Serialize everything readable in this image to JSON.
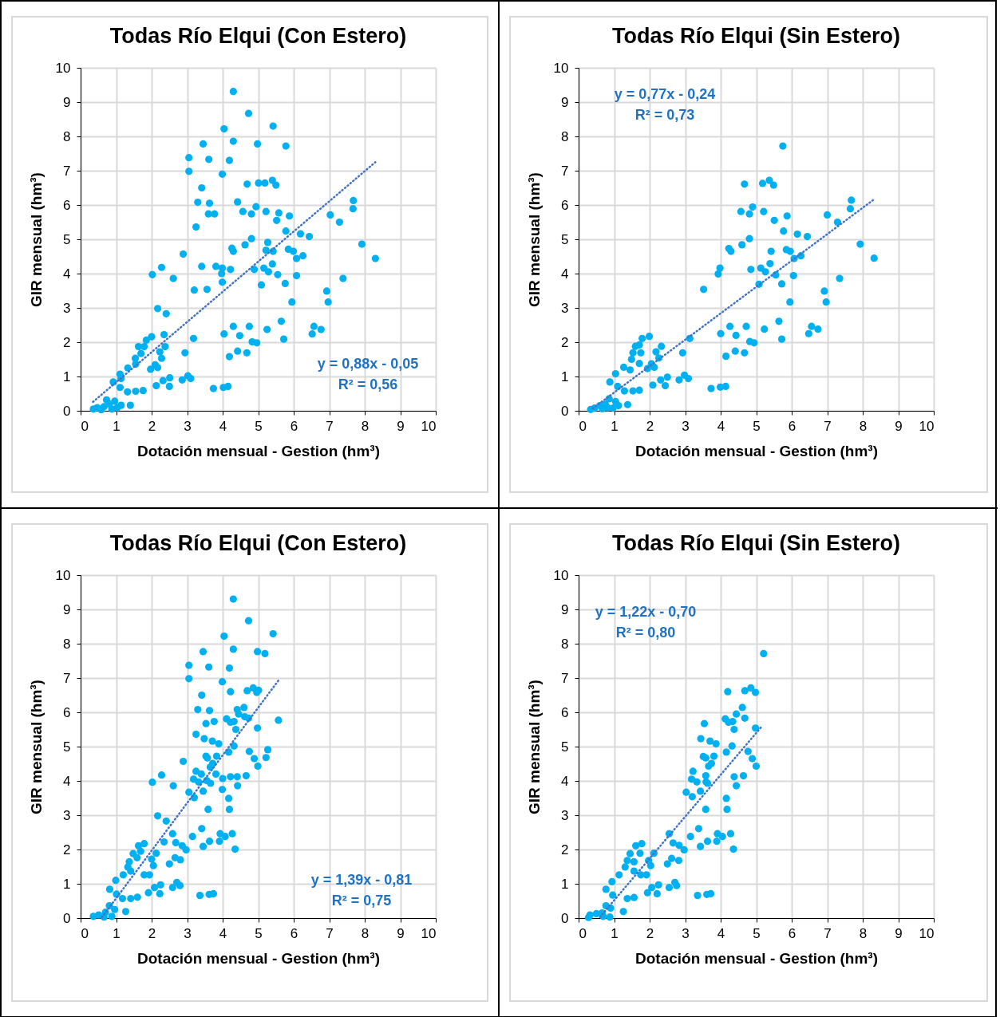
{
  "chart_data": [
    {
      "type": "scatter",
      "title": "Todas Río Elqui (Con Estero)",
      "xlabel": "Dotación mensual - Gestion (hm³)",
      "ylabel": "GIR mensual (hm³)",
      "xlim": [
        0,
        10
      ],
      "ylim": [
        0,
        10
      ],
      "xticks": [
        0,
        1,
        2,
        3,
        4,
        5,
        6,
        7,
        8,
        9,
        10
      ],
      "yticks": [
        0,
        1,
        2,
        3,
        4,
        5,
        6,
        7,
        8,
        9,
        10
      ],
      "grid": true,
      "marker": "circle",
      "annotations": [
        "y = 0,88x - 0,05",
        "R² = 0,56"
      ],
      "series": [
        {
          "type": "scatter",
          "color": "#00b0f0",
          "x": [
            4.3,
            4.73,
            4.04,
            5.42,
            3.45,
            4.3,
            4.98,
            5.78,
            3.05,
            3.61,
            4.19,
            3.05,
            3.99,
            3.41,
            4.69,
            5.01,
            5.19,
            5.4,
            5.5,
            3.3,
            3.63,
            4.42,
            3.6,
            3.77,
            4.57,
            4.81,
            4.94,
            5.22,
            5.58,
            5.52,
            5.88,
            7.03,
            7.29,
            7.68,
            7.67,
            3.25,
            5.78,
            6.19,
            6.44,
            4.81,
            4.63,
            5.27,
            4.26,
            4.3,
            5.22,
            5.42,
            5.85,
            5.99,
            6.08,
            6.26,
            7.92,
            8.3,
            2.89,
            2.02,
            2.28,
            2.61,
            3.41,
            3.81,
            3.99,
            3.97,
            4.22,
            4.89,
            5.16,
            5.4,
            5.29,
            5.55,
            6.08,
            3.99,
            5.09,
            5.76,
            3.2,
            3.56,
            7.39,
            6.93,
            6.97,
            5.95,
            2.17,
            2.41,
            5.65,
            4.3,
            4.75,
            5.25,
            4.04,
            4.48,
            6.57,
            6.77,
            6.52,
            4.83,
            4.96,
            5.72,
            3.18,
            4.19,
            4.42,
            4.68,
            2.94,
            2.0,
            2.35,
            2.38,
            2.23,
            2.28,
            2.1,
            2.17,
            1.97,
            1.85,
            1.79,
            1.63,
            1.7,
            1.54,
            1.55,
            1.33,
            1.11,
            0.92,
            1.14,
            1.11,
            1.32,
            1.55,
            1.76,
            2.13,
            2.32,
            2.51,
            2.5,
            2.86,
            3.02,
            3.1,
            3.74,
            4.02,
            4.15,
            1.4,
            0.96,
            0.81,
            0.66,
            0.47,
            0.36,
            1.03,
            0.88,
            0.58,
            1.14,
            0.73
          ],
          "values": [
            9.31,
            8.67,
            8.22,
            8.3,
            7.78,
            7.86,
            7.78,
            7.72,
            7.38,
            7.33,
            7.3,
            6.98,
            6.9,
            6.5,
            6.61,
            6.64,
            6.64,
            6.72,
            6.58,
            6.08,
            6.05,
            6.09,
            5.74,
            5.74,
            5.81,
            5.74,
            5.95,
            5.81,
            5.77,
            5.55,
            5.68,
            5.71,
            5.5,
            6.13,
            5.89,
            5.36,
            5.24,
            5.16,
            5.08,
            5.02,
            4.84,
            4.91,
            4.74,
            4.65,
            4.68,
            4.65,
            4.71,
            4.65,
            4.44,
            4.52,
            4.86,
            4.44,
            4.57,
            3.97,
            4.18,
            3.86,
            4.21,
            4.21,
            4.16,
            4.0,
            4.12,
            4.12,
            4.16,
            4.28,
            4.05,
            3.97,
            3.94,
            3.75,
            3.67,
            3.71,
            3.52,
            3.54,
            3.86,
            3.49,
            3.17,
            3.17,
            2.98,
            2.83,
            2.61,
            2.46,
            2.46,
            2.37,
            2.24,
            2.19,
            2.46,
            2.37,
            2.24,
            2.01,
            1.98,
            2.09,
            2.11,
            1.58,
            1.74,
            1.69,
            1.69,
            2.16,
            2.22,
            1.87,
            1.72,
            1.53,
            1.34,
            1.26,
            1.21,
            2.06,
            1.87,
            1.87,
            1.67,
            1.53,
            1.36,
            1.25,
            1.07,
            0.84,
            0.94,
            0.68,
            0.55,
            0.57,
            0.59,
            0.73,
            0.88,
            0.96,
            0.71,
            0.9,
            1.02,
            0.94,
            0.65,
            0.68,
            0.71,
            0.16,
            0.28,
            0.2,
            0.12,
            0.09,
            0.05,
            0.09,
            0.05,
            0.03,
            0.16,
            0.32
          ]
        },
        {
          "type": "line",
          "color": "#4472c4",
          "line_style": "dotted",
          "marker": "none",
          "x": [
            0.35,
            8.3
          ],
          "values": [
            0.26,
            7.25
          ]
        }
      ]
    },
    {
      "type": "scatter",
      "title": "Todas Río Elqui (Sin Estero)",
      "xlabel": "Dotación mensual - Gestion (hm³)",
      "ylabel": "GIR mensual (hm³)",
      "xlim": [
        0,
        10
      ],
      "ylim": [
        0,
        10
      ],
      "xticks": [
        0,
        1,
        2,
        3,
        4,
        5,
        6,
        7,
        8,
        9,
        10
      ],
      "yticks": [
        0,
        1,
        2,
        3,
        4,
        5,
        6,
        7,
        8,
        9,
        10
      ],
      "grid": true,
      "marker": "circle",
      "annotations": [
        "y = 0,77x - 0,24",
        "R² = 0,73"
      ],
      "series": [
        {
          "type": "scatter",
          "color": "#00b0f0",
          "x": [
            5.75,
            4.67,
            5.18,
            5.37,
            5.49,
            4.57,
            4.81,
            4.9,
            5.21,
            5.87,
            5.51,
            5.77,
            6.16,
            6.44,
            7.0,
            7.29,
            7.68,
            7.65,
            4.81,
            4.6,
            4.23,
            4.29,
            5.42,
            5.85,
            5.96,
            6.07,
            6.26,
            7.93,
            8.32,
            3.98,
            3.93,
            4.85,
            5.13,
            5.26,
            5.39,
            5.55,
            6.05,
            5.08,
            5.72,
            3.52,
            7.35,
            6.92,
            6.97,
            5.95,
            3.13,
            4.26,
            4.72,
            5.23,
            5.64,
            4.0,
            4.43,
            6.56,
            6.74,
            6.48,
            4.82,
            4.94,
            5.72,
            4.15,
            4.41,
            4.67,
            2.93,
            1.99,
            2.33,
            2.18,
            2.26,
            2.05,
            2.13,
            1.94,
            1.79,
            1.71,
            1.6,
            1.75,
            1.53,
            1.49,
            1.71,
            1.27,
            1.45,
            1.04,
            0.88,
            1.1,
            1.53,
            1.71,
            1.29,
            2.09,
            2.31,
            2.5,
            2.44,
            2.83,
            2.98,
            3.09,
            3.73,
            3.99,
            4.14,
            1.38,
            1.04,
            1.12,
            0.86,
            0.75,
            0.6,
            0.45,
            0.34,
            0.97,
            0.67,
            0.82
          ],
          "values": [
            7.72,
            6.61,
            6.63,
            6.72,
            6.58,
            5.81,
            5.74,
            5.94,
            5.81,
            5.68,
            5.55,
            5.24,
            5.15,
            5.08,
            5.71,
            5.5,
            6.14,
            5.89,
            5.02,
            4.84,
            4.73,
            4.65,
            4.65,
            4.7,
            4.65,
            4.44,
            4.52,
            4.86,
            4.45,
            4.16,
            3.99,
            4.12,
            4.16,
            4.05,
            4.29,
            3.96,
            3.94,
            3.69,
            3.7,
            3.54,
            3.86,
            3.49,
            3.17,
            3.17,
            2.11,
            2.46,
            2.46,
            2.38,
            2.61,
            2.25,
            2.2,
            2.46,
            2.38,
            2.25,
            2.02,
            1.98,
            2.09,
            1.59,
            1.74,
            1.69,
            1.69,
            2.17,
            1.88,
            1.72,
            1.54,
            1.37,
            1.27,
            1.23,
            2.11,
            1.92,
            1.88,
            1.69,
            1.69,
            1.5,
            1.38,
            1.27,
            1.19,
            1.08,
            0.84,
            0.71,
            0.58,
            0.6,
            0.58,
            0.75,
            0.9,
            0.98,
            0.73,
            0.9,
            1.04,
            0.94,
            0.65,
            0.69,
            0.71,
            0.18,
            0.27,
            0.15,
            0.35,
            0.19,
            0.15,
            0.08,
            0.04,
            0.08,
            0.06,
            0.09
          ]
        },
        {
          "type": "line",
          "color": "#4472c4",
          "line_style": "dotted",
          "marker": "none",
          "x": [
            0.4,
            8.3
          ],
          "values": [
            0.07,
            6.15
          ]
        }
      ]
    },
    {
      "type": "scatter",
      "title": "Todas Río Elqui (Con Estero)",
      "xlabel": "Dotación mensual - Gestion (hm³)",
      "ylabel": "GIR mensual (hm³)",
      "xlim": [
        0,
        10
      ],
      "ylim": [
        0,
        10
      ],
      "xticks": [
        0,
        1,
        2,
        3,
        4,
        5,
        6,
        7,
        8,
        9,
        10
      ],
      "yticks": [
        0,
        1,
        2,
        3,
        4,
        5,
        6,
        7,
        8,
        9,
        10
      ],
      "grid": true,
      "marker": "circle",
      "annotations": [
        "y = 1,39x - 0,81",
        "R² = 0,75"
      ],
      "series": [
        {
          "type": "scatter",
          "color": "#00b0f0",
          "x": [
            4.3,
            4.73,
            4.04,
            5.42,
            3.45,
            4.3,
            4.98,
            5.19,
            3.05,
            3.61,
            4.19,
            3.05,
            3.99,
            3.41,
            4.22,
            4.69,
            4.86,
            4.96,
            5.01,
            3.3,
            3.63,
            4.41,
            4.6,
            4.45,
            4.62,
            4.73,
            4.11,
            4.22,
            4.32,
            3.53,
            3.76,
            5.57,
            4.98,
            4.37,
            3.25,
            3.48,
            3.71,
            3.89,
            4.32,
            4.17,
            4.75,
            4.89,
            4.99,
            5.22,
            5.27,
            2.89,
            3.53,
            3.57,
            3.83,
            3.72,
            3.65,
            3.25,
            3.4,
            3.18,
            3.32,
            3.55,
            3.66,
            3.81,
            4.0,
            4.22,
            4.41,
            4.66,
            4.42,
            2.02,
            2.28,
            2.61,
            3.99,
            3.05,
            3.45,
            3.2,
            4.17,
            3.59,
            4.19,
            2.17,
            2.41,
            3.41,
            2.59,
            3.15,
            3.93,
            4.07,
            4.27,
            2.35,
            2.68,
            2.86,
            2.97,
            3.45,
            3.63,
            3.91,
            4.35,
            1.79,
            1.63,
            1.69,
            1.48,
            1.59,
            1.37,
            1.33,
            1.41,
            1.2,
            0.99,
            0.82,
            1.01,
            1.18,
            1.41,
            1.6,
            1.79,
            1.94,
            2.0,
            2.05,
            2.13,
            2.5,
            2.66,
            2.81,
            1.91,
            2.08,
            2.25,
            2.23,
            2.59,
            2.71,
            2.8,
            3.36,
            3.62,
            3.74,
            1.27,
            0.96,
            0.81,
            0.7,
            0.51,
            0.36,
            0.88,
            0.66
          ],
          "values": [
            9.3,
            8.67,
            8.22,
            8.29,
            7.77,
            7.84,
            7.77,
            7.71,
            7.37,
            7.32,
            7.29,
            6.98,
            6.89,
            6.5,
            6.6,
            6.63,
            6.71,
            6.58,
            6.64,
            6.08,
            6.05,
            6.08,
            6.14,
            5.95,
            5.87,
            5.83,
            5.81,
            5.71,
            5.73,
            5.67,
            5.73,
            5.77,
            5.54,
            5.5,
            5.36,
            5.23,
            5.16,
            5.08,
            5.02,
            4.84,
            4.86,
            4.65,
            4.43,
            4.68,
            4.91,
            4.57,
            4.72,
            4.67,
            4.72,
            4.51,
            4.4,
            4.28,
            4.2,
            4.05,
            3.97,
            4.01,
            3.93,
            4.2,
            4.07,
            4.12,
            4.12,
            4.15,
            3.86,
            3.96,
            4.17,
            3.86,
            3.75,
            3.67,
            3.7,
            3.51,
            3.49,
            3.17,
            3.17,
            2.98,
            2.83,
            2.61,
            2.46,
            2.38,
            2.46,
            2.38,
            2.46,
            2.22,
            2.2,
            2.11,
            1.99,
            2.09,
            2.24,
            2.24,
            2.01,
            2.17,
            2.11,
            1.95,
            1.88,
            1.76,
            1.64,
            1.49,
            1.37,
            1.26,
            1.1,
            0.84,
            0.7,
            0.57,
            0.57,
            0.61,
            1.26,
            1.26,
            1.72,
            1.53,
            1.89,
            1.58,
            1.76,
            1.7,
            0.74,
            0.89,
            0.97,
            0.71,
            0.89,
            1.04,
            0.95,
            0.66,
            0.69,
            0.71,
            0.19,
            0.25,
            0.36,
            0.17,
            0.09,
            0.05,
            0.05,
            0.03
          ]
        },
        {
          "type": "line",
          "color": "#4472c4",
          "line_style": "dotted",
          "marker": "none",
          "x": [
            0.6,
            5.6
          ],
          "values": [
            0.02,
            6.97
          ]
        }
      ]
    },
    {
      "type": "scatter",
      "title": "Todas Río Elqui (Sin Estero)",
      "xlabel": "Dotación mensual - Gestion (hm³)",
      "ylabel": "GIR mensual (hm³)",
      "xlim": [
        0,
        10
      ],
      "ylim": [
        0,
        10
      ],
      "xticks": [
        0,
        1,
        2,
        3,
        4,
        5,
        6,
        7,
        8,
        9,
        10
      ],
      "yticks": [
        0,
        1,
        2,
        3,
        4,
        5,
        6,
        7,
        8,
        9,
        10
      ],
      "grid": true,
      "marker": "circle",
      "annotations": [
        "y = 1,22x - 0,70",
        "R² = 0,80"
      ],
      "series": [
        {
          "type": "scatter",
          "color": "#00b0f0",
          "x": [
            5.21,
            4.2,
            4.68,
            4.85,
            4.98,
            3.54,
            3.44,
            3.7,
            3.87,
            4.13,
            4.22,
            4.34,
            4.44,
            4.61,
            4.68,
            4.38,
            4.98,
            4.16,
            4.32,
            4.77,
            4.89,
            5.0,
            3.51,
            3.58,
            3.81,
            3.74,
            3.66,
            3.22,
            3.18,
            3.33,
            3.58,
            3.59,
            3.63,
            4.38,
            4.64,
            4.44,
            3.03,
            3.2,
            3.43,
            4.16,
            3.58,
            4.18,
            2.55,
            3.38,
            3.15,
            3.91,
            4.05,
            4.28,
            2.66,
            2.83,
            2.97,
            3.43,
            3.63,
            3.89,
            4.36,
            1.78,
            1.61,
            1.73,
            1.45,
            1.37,
            1.56,
            1.31,
            1.56,
            1.14,
            0.94,
            0.77,
            0.96,
            1.37,
            1.56,
            1.75,
            1.91,
            2.03,
            1.97,
            2.12,
            2.5,
            2.62,
            2.82,
            1.94,
            2.06,
            2.25,
            2.21,
            2.55,
            2.71,
            2.76,
            3.35,
            3.61,
            3.72,
            1.26,
            0.9,
            0.77,
            0.66,
            0.5,
            0.32,
            0.28,
            0.88,
            0.69
          ],
          "values": [
            7.71,
            6.6,
            6.63,
            6.71,
            6.58,
            5.67,
            5.23,
            5.16,
            5.08,
            5.81,
            5.71,
            5.73,
            5.95,
            6.14,
            5.83,
            5.5,
            5.54,
            4.84,
            5.02,
            4.86,
            4.65,
            4.43,
            4.71,
            4.67,
            4.72,
            4.51,
            4.43,
            4.28,
            4.05,
            3.97,
            4.15,
            3.97,
            3.93,
            4.12,
            4.15,
            3.86,
            3.67,
            3.54,
            3.7,
            3.49,
            3.17,
            3.17,
            2.46,
            2.61,
            2.38,
            2.46,
            2.38,
            2.46,
            2.19,
            2.12,
            1.99,
            2.09,
            2.24,
            2.24,
            2.01,
            2.17,
            2.11,
            1.89,
            1.88,
            1.68,
            1.64,
            1.49,
            1.37,
            1.26,
            1.06,
            0.84,
            0.67,
            0.57,
            0.6,
            1.26,
            1.26,
            1.53,
            1.68,
            1.89,
            1.58,
            1.74,
            1.68,
            0.74,
            0.89,
            0.97,
            0.71,
            0.89,
            1.04,
            0.95,
            0.66,
            0.69,
            0.71,
            0.19,
            0.29,
            0.36,
            0.15,
            0.13,
            0.09,
            0.02,
            0.03,
            0.05
          ]
        },
        {
          "type": "line",
          "color": "#4472c4",
          "line_style": "dotted",
          "marker": "none",
          "x": [
            0.6,
            5.15
          ],
          "values": [
            0.03,
            5.58
          ]
        }
      ]
    }
  ]
}
